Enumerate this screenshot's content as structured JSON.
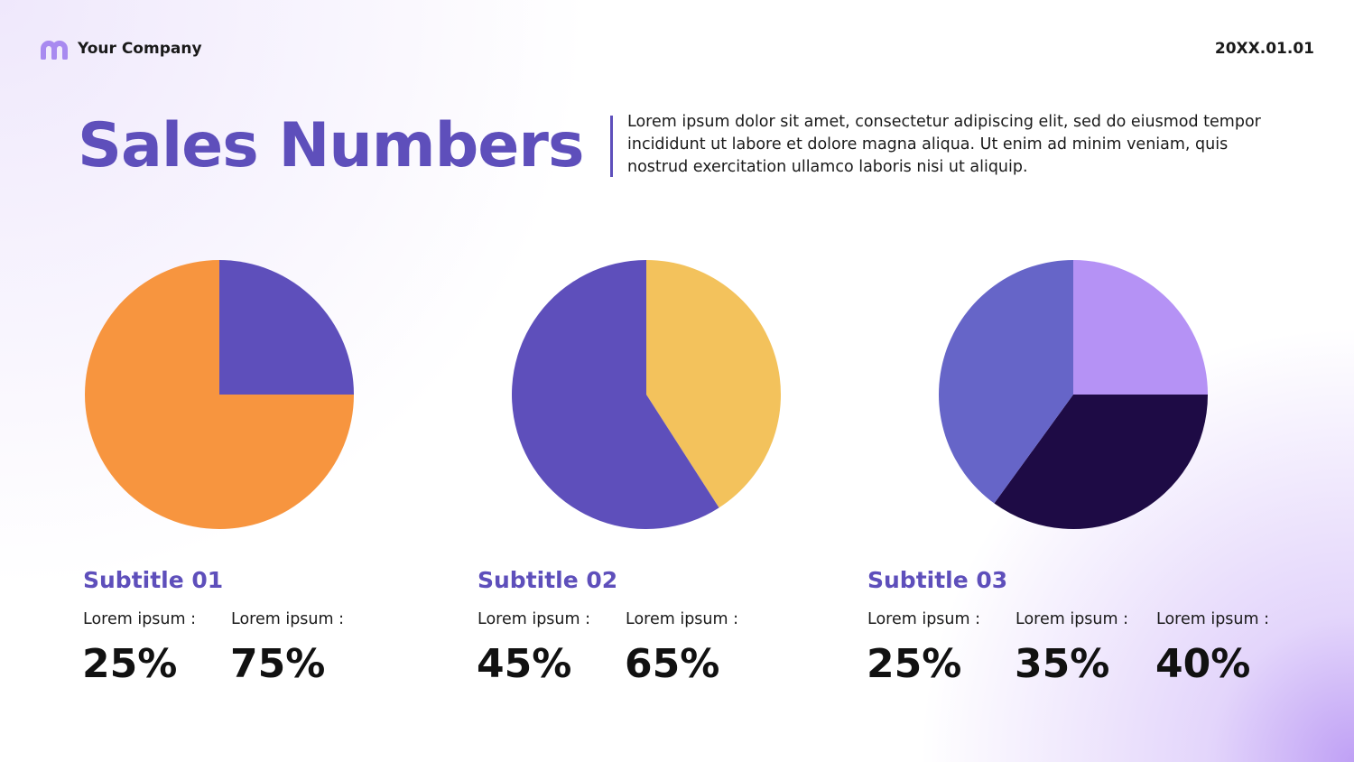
{
  "header": {
    "company": "Your Company",
    "date": "20XX.01.01"
  },
  "title": "Sales Numbers",
  "description": "Lorem ipsum dolor sit amet, consectetur adipiscing elit, sed do eiusmod tempor incididunt ut labore et dolore magna aliqua. Ut enim ad minim veniam, quis nostrud exercitation ullamco laboris nisi ut aliquip.",
  "chart_data": [
    {
      "type": "pie",
      "title": "Subtitle 01",
      "categories": [
        "Lorem ipsum :",
        "Lorem ipsum :"
      ],
      "values": [
        25,
        75
      ],
      "value_labels": [
        "25%",
        "75%"
      ],
      "colors": [
        "#5e4fbb",
        "#f7953f"
      ]
    },
    {
      "type": "pie",
      "title": "Subtitle 02",
      "categories": [
        "Lorem ipsum :",
        "Lorem ipsum :"
      ],
      "values": [
        45,
        65
      ],
      "value_labels": [
        "45%",
        "65%"
      ],
      "colors": [
        "#f3c25c",
        "#5e4fbb"
      ]
    },
    {
      "type": "pie",
      "title": "Subtitle 03",
      "categories": [
        "Lorem ipsum :",
        "Lorem ipsum :",
        "Lorem ipsum :"
      ],
      "values": [
        25,
        35,
        40
      ],
      "value_labels": [
        "25%",
        "35%",
        "40%"
      ],
      "colors": [
        "#b592f5",
        "#1e0b45",
        "#6665c8"
      ]
    }
  ]
}
